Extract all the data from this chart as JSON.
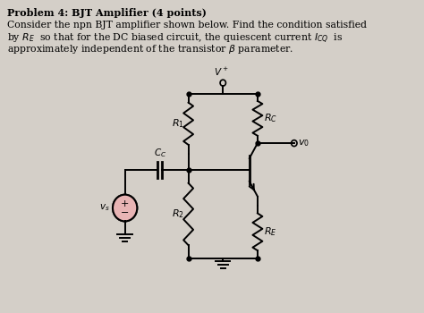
{
  "bg_color": "#d4cfc8",
  "text_color": "#000000",
  "circuit_bg": "#e8e4de",
  "fig_width": 4.74,
  "fig_height": 3.5,
  "dpi": 100,
  "title": "Problem 4: BJT Amplifier (4 points)",
  "line1": "Consider the npn BJT amplifier shown below. Find the condition satisfied",
  "line2": "by $R_E$  so that for the DC biased circuit, the quiescent current $I_{CQ}$  is",
  "line3": "approximately independent of the transistor $\\beta$ parameter."
}
